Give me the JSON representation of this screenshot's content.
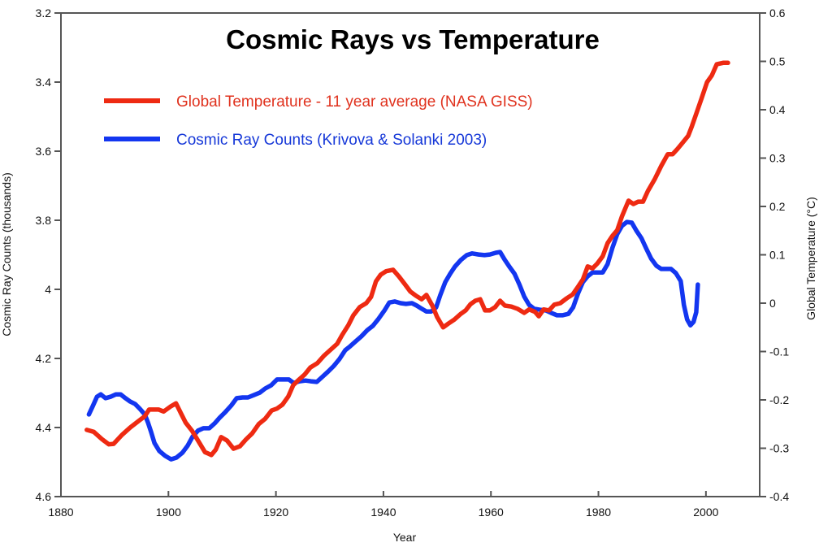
{
  "chart_data": {
    "type": "line",
    "title": "Cosmic Rays vs Temperature",
    "xlabel": "Year",
    "ylabel_left": "Cosmic Ray Counts (thousands)",
    "ylabel_right": "Global Temperature (°C)",
    "xlim": [
      1880,
      2010
    ],
    "ylim_left": [
      3.2,
      4.6
    ],
    "ylim_left_inverted": true,
    "ylim_right": [
      -0.4,
      0.6
    ],
    "x_ticks": [
      "1880",
      "1900",
      "1920",
      "1940",
      "1960",
      "1980",
      "2000"
    ],
    "y_left_ticks": [
      "3.2",
      "3.4",
      "3.6",
      "3.8",
      "4",
      "4.2",
      "4.4",
      "4.6"
    ],
    "y_right_ticks": [
      "0.6",
      "0.5",
      "0.4",
      "0.3",
      "0.2",
      "0.1",
      "0",
      "-0.1",
      "-0.2",
      "-0.3",
      "-0.4"
    ],
    "grid": false,
    "legend_position": "top-left",
    "series": [
      {
        "name": "Global Temperature - 11 year average (NASA GISS)",
        "axis": "right",
        "color": "#ee2a12",
        "x": [
          1884.8,
          1886.1,
          1887.6,
          1888.9,
          1889.8,
          1891.4,
          1892.9,
          1894.4,
          1895.6,
          1896.4,
          1898.2,
          1899.1,
          1900.5,
          1901.4,
          1902.3,
          1903.2,
          1904.4,
          1905.6,
          1906.8,
          1908.0,
          1908.8,
          1909.8,
          1910.9,
          1912.1,
          1913.3,
          1914.4,
          1915.6,
          1916.8,
          1918.0,
          1919.2,
          1920.2,
          1921.2,
          1922.3,
          1923.2,
          1924.1,
          1925.3,
          1926.4,
          1927.7,
          1928.9,
          1930.2,
          1931.4,
          1932.3,
          1933.5,
          1934.4,
          1935.6,
          1936.8,
          1937.7,
          1938.6,
          1939.5,
          1940.5,
          1941.8,
          1942.9,
          1944.0,
          1945.0,
          1946.1,
          1947.1,
          1948.0,
          1949.1,
          1950.0,
          1951.1,
          1952.1,
          1953.2,
          1954.4,
          1955.3,
          1956.2,
          1957.1,
          1958.0,
          1958.9,
          1959.8,
          1960.8,
          1961.7,
          1962.6,
          1963.8,
          1965.0,
          1966.2,
          1967.1,
          1968.2,
          1968.9,
          1969.8,
          1970.8,
          1971.8,
          1972.9,
          1974.1,
          1975.2,
          1976.2,
          1977.1,
          1978.0,
          1978.9,
          1979.8,
          1980.8,
          1981.7,
          1982.6,
          1983.5,
          1984.4,
          1985.6,
          1986.5,
          1987.4,
          1988.3,
          1989.2,
          1990.5,
          1991.7,
          1992.9,
          1993.8,
          1994.7,
          1995.6,
          1996.7,
          1997.4,
          1998.3,
          1999.2,
          2000.2,
          2001.1,
          2002.0,
          2003.2,
          2004.1
        ],
        "values": [
          -0.262,
          -0.266,
          -0.281,
          -0.292,
          -0.291,
          -0.272,
          -0.257,
          -0.244,
          -0.234,
          -0.22,
          -0.22,
          -0.224,
          -0.213,
          -0.207,
          -0.227,
          -0.247,
          -0.264,
          -0.286,
          -0.308,
          -0.314,
          -0.303,
          -0.277,
          -0.284,
          -0.301,
          -0.296,
          -0.282,
          -0.269,
          -0.25,
          -0.239,
          -0.222,
          -0.218,
          -0.21,
          -0.193,
          -0.17,
          -0.16,
          -0.148,
          -0.133,
          -0.124,
          -0.109,
          -0.096,
          -0.084,
          -0.066,
          -0.045,
          -0.025,
          -0.008,
          0.0,
          0.013,
          0.045,
          0.059,
          0.066,
          0.069,
          0.055,
          0.039,
          0.024,
          0.015,
          0.008,
          0.017,
          -0.005,
          -0.029,
          -0.05,
          -0.042,
          -0.034,
          -0.022,
          -0.015,
          -0.002,
          0.005,
          0.008,
          -0.015,
          -0.015,
          -0.008,
          0.005,
          -0.005,
          -0.007,
          -0.012,
          -0.02,
          -0.013,
          -0.018,
          -0.027,
          -0.013,
          -0.015,
          -0.003,
          0.0,
          0.01,
          0.018,
          0.034,
          0.049,
          0.076,
          0.072,
          0.082,
          0.097,
          0.124,
          0.139,
          0.151,
          0.18,
          0.212,
          0.205,
          0.21,
          0.21,
          0.232,
          0.257,
          0.284,
          0.308,
          0.308,
          0.319,
          0.331,
          0.346,
          0.366,
          0.395,
          0.424,
          0.457,
          0.471,
          0.494,
          0.497,
          0.497
        ]
      },
      {
        "name": "Cosmic Ray Counts (Krivova & Solanki 2003)",
        "axis": "left",
        "color": "#1336f0",
        "x": [
          1885.2,
          1885.9,
          1886.7,
          1887.4,
          1888.3,
          1889.2,
          1890.2,
          1891.1,
          1892.0,
          1892.9,
          1893.8,
          1894.7,
          1895.6,
          1896.2,
          1896.8,
          1897.4,
          1898.3,
          1899.4,
          1900.5,
          1901.5,
          1902.6,
          1903.6,
          1904.5,
          1905.5,
          1906.5,
          1907.6,
          1908.6,
          1909.5,
          1910.6,
          1911.7,
          1912.7,
          1913.8,
          1914.8,
          1915.9,
          1917.0,
          1918.0,
          1919.1,
          1920.2,
          1921.4,
          1922.4,
          1923.3,
          1924.4,
          1925.5,
          1926.5,
          1927.6,
          1928.6,
          1929.7,
          1930.8,
          1931.8,
          1932.9,
          1933.8,
          1934.8,
          1935.9,
          1937.0,
          1938.0,
          1939.1,
          1940.2,
          1941.1,
          1942.1,
          1943.2,
          1944.2,
          1945.3,
          1946.2,
          1947.1,
          1948.0,
          1948.9,
          1949.8,
          1950.6,
          1951.5,
          1952.4,
          1953.3,
          1954.4,
          1955.5,
          1956.5,
          1957.7,
          1958.8,
          1959.8,
          1960.9,
          1961.7,
          1962.6,
          1963.5,
          1964.4,
          1965.3,
          1966.2,
          1967.1,
          1968.0,
          1969.1,
          1970.2,
          1971.2,
          1972.3,
          1973.3,
          1974.4,
          1975.3,
          1976.2,
          1977.1,
          1978.0,
          1978.9,
          1979.8,
          1980.8,
          1981.7,
          1982.6,
          1983.5,
          1984.4,
          1985.3,
          1986.2,
          1987.1,
          1988.0,
          1988.9,
          1989.8,
          1990.8,
          1991.7,
          1992.6,
          1993.5,
          1994.4,
          1995.3,
          1995.9,
          1996.5,
          1997.1,
          1997.7,
          1998.2,
          1998.5
        ],
        "values": [
          4.362,
          4.339,
          4.311,
          4.304,
          4.315,
          4.311,
          4.304,
          4.304,
          4.315,
          4.325,
          4.332,
          4.346,
          4.362,
          4.386,
          4.414,
          4.445,
          4.468,
          4.482,
          4.492,
          4.487,
          4.473,
          4.452,
          4.426,
          4.409,
          4.402,
          4.402,
          4.388,
          4.372,
          4.355,
          4.336,
          4.315,
          4.313,
          4.313,
          4.306,
          4.299,
          4.287,
          4.278,
          4.261,
          4.261,
          4.261,
          4.271,
          4.266,
          4.264,
          4.266,
          4.268,
          4.254,
          4.238,
          4.221,
          4.202,
          4.176,
          4.165,
          4.151,
          4.136,
          4.118,
          4.106,
          4.085,
          4.061,
          4.038,
          4.035,
          4.04,
          4.042,
          4.04,
          4.047,
          4.056,
          4.064,
          4.064,
          4.052,
          4.016,
          3.979,
          3.955,
          3.934,
          3.915,
          3.901,
          3.896,
          3.899,
          3.901,
          3.899,
          3.894,
          3.892,
          3.915,
          3.936,
          3.955,
          3.986,
          4.021,
          4.045,
          4.056,
          4.059,
          4.061,
          4.068,
          4.075,
          4.075,
          4.071,
          4.052,
          4.012,
          3.979,
          3.962,
          3.951,
          3.951,
          3.951,
          3.927,
          3.88,
          3.84,
          3.816,
          3.805,
          3.807,
          3.831,
          3.852,
          3.882,
          3.911,
          3.932,
          3.941,
          3.941,
          3.941,
          3.953,
          3.976,
          4.045,
          4.087,
          4.104,
          4.094,
          4.066,
          3.986
        ]
      }
    ]
  }
}
